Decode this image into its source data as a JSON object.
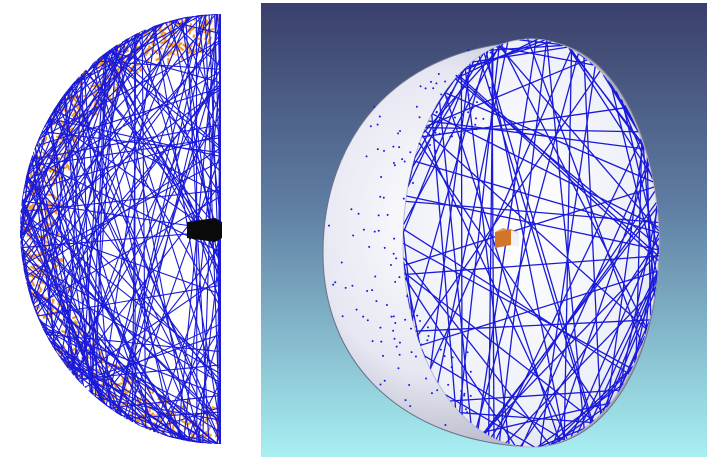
{
  "colors": {
    "ray_blue": "#1a1ad8",
    "hit_orange": "#f59a2a",
    "source_black": "#0a0a0a",
    "background_top": "#3a3f6b",
    "background_bottom": "#a8f0f2",
    "dome_light": "#f4f4fb",
    "dome_shadow": "#8f92a8",
    "cube_orange": "#d2742a"
  },
  "icons": {
    "left_view": "ray-trace-hemisphere-side-view",
    "right_view": "ray-trace-dome-3d-view",
    "source": "light-source-block"
  }
}
